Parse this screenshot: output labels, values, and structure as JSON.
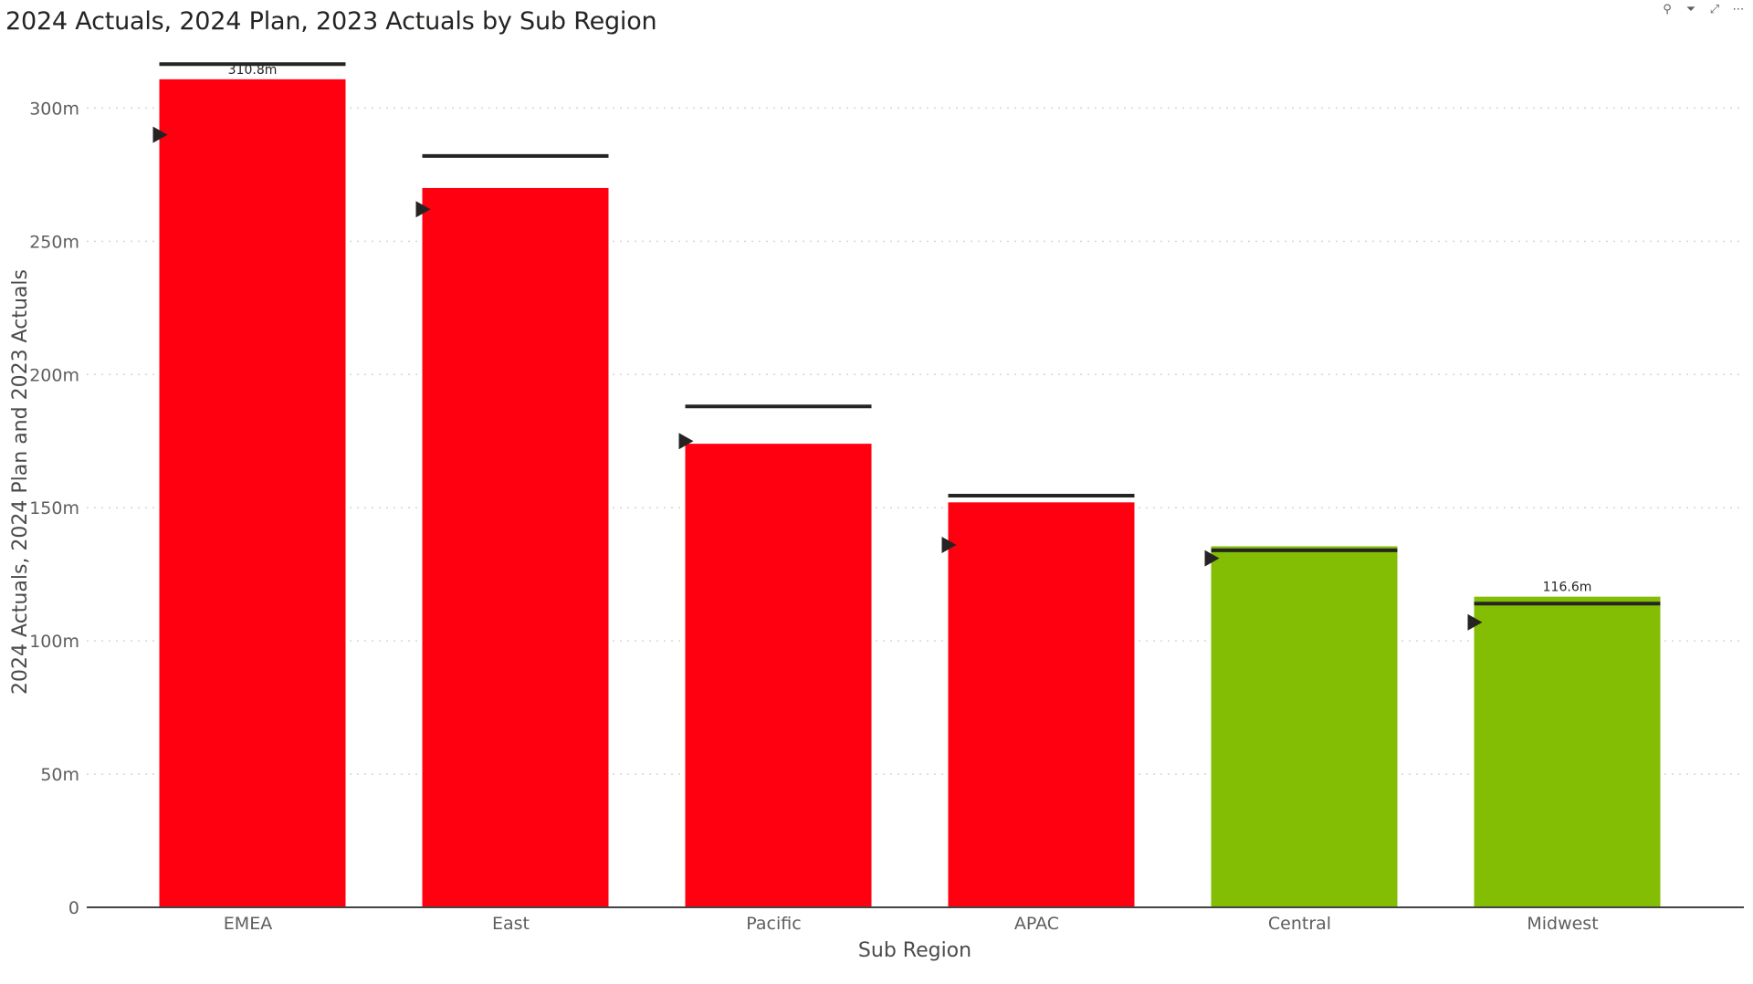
{
  "header": {
    "icons": [
      {
        "name": "pin-icon",
        "glyph": "⚲"
      },
      {
        "name": "filter-icon",
        "glyph": "⏷"
      },
      {
        "name": "focus-mode-icon",
        "glyph": "⤢"
      },
      {
        "name": "more-options-icon",
        "glyph": "⋯"
      }
    ]
  },
  "chart_data": {
    "type": "bar",
    "title": "2024 Actuals, 2024 Plan, 2023 Actuals by Sub Region",
    "xlabel": "Sub Region",
    "ylabel": "2024 Actuals, 2024 Plan and 2023 Actuals",
    "ylim": [
      0,
      320
    ],
    "yticks": [
      {
        "value": 0,
        "label": "0"
      },
      {
        "value": 50,
        "label": "50m"
      },
      {
        "value": 100,
        "label": "100m"
      },
      {
        "value": 150,
        "label": "150m"
      },
      {
        "value": 200,
        "label": "200m"
      },
      {
        "value": 250,
        "label": "250m"
      },
      {
        "value": 300,
        "label": "300m"
      }
    ],
    "grid": true,
    "categories": [
      "EMEA",
      "East",
      "Pacific",
      "APAC",
      "Central",
      "Midwest"
    ],
    "series": [
      {
        "name": "2024 Actuals",
        "values": [
          310.8,
          270.0,
          174.0,
          152.0,
          135.5,
          116.6
        ]
      },
      {
        "name": "2024 Plan",
        "values": [
          316.5,
          282.0,
          188.0,
          154.5,
          134.0,
          114.0
        ]
      },
      {
        "name": "2023 Actuals",
        "values": [
          290.0,
          262.0,
          175.0,
          136.0,
          131.0,
          107.0
        ]
      }
    ],
    "bar_colors": [
      "#ff0010",
      "#ff0010",
      "#ff0010",
      "#ff0010",
      "#83bd04",
      "#83bd04"
    ],
    "data_labels": [
      {
        "category": "EMEA",
        "text": "310.8m"
      },
      {
        "category": "Midwest",
        "text": "116.6m"
      }
    ],
    "marker_color": "#252423"
  }
}
